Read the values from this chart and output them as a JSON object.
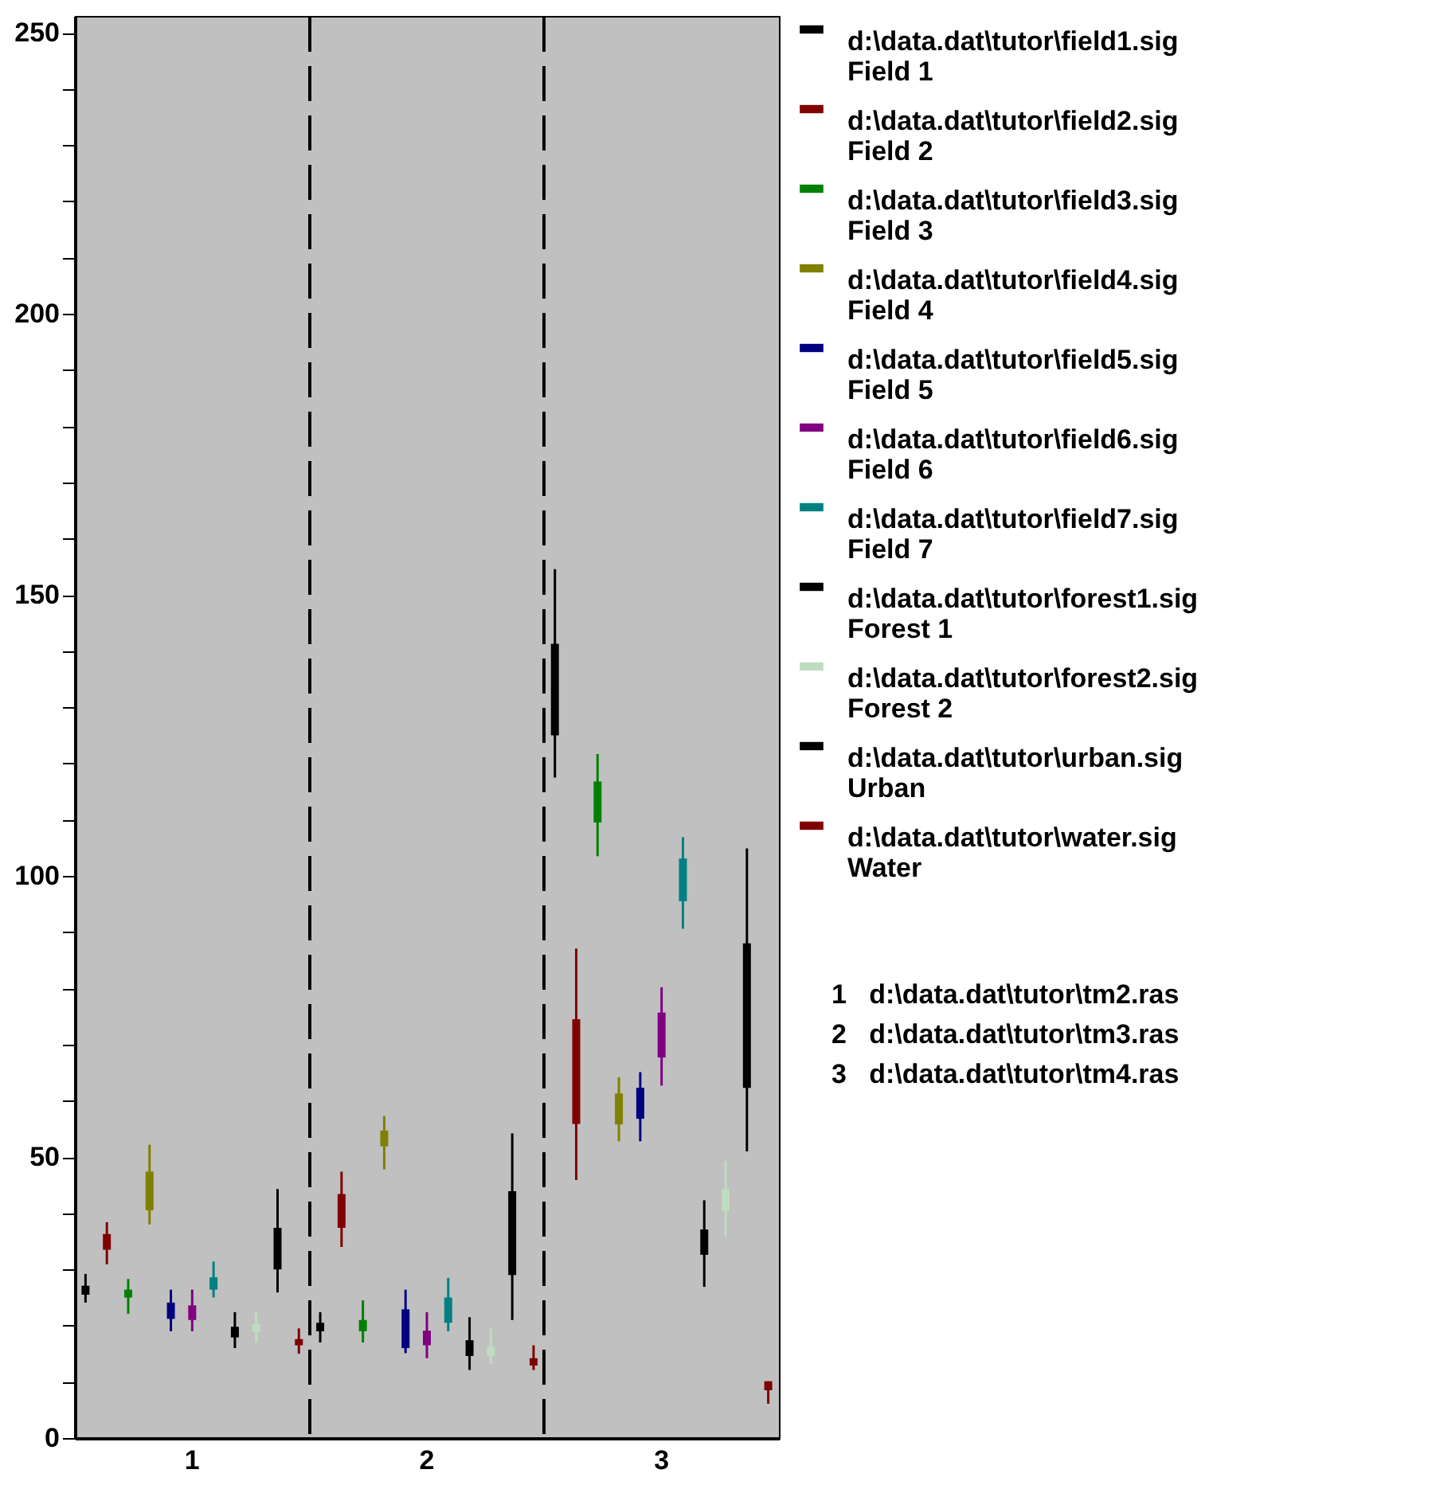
{
  "chart_data": {
    "type": "bar",
    "categories": [
      "1",
      "2",
      "3"
    ],
    "ylim": [
      0,
      253
    ],
    "yticks": [
      0,
      {
        "value": 10,
        "label": null
      },
      {
        "value": 20,
        "label": null
      },
      {
        "value": 30,
        "label": null
      },
      {
        "value": 40,
        "label": null
      },
      50,
      {
        "value": 60,
        "label": null
      },
      {
        "value": 70,
        "label": null
      },
      {
        "value": 80,
        "label": null
      },
      {
        "value": 90,
        "label": null
      },
      100,
      {
        "value": 110,
        "label": null
      },
      {
        "value": 120,
        "label": null
      },
      {
        "value": 130,
        "label": null
      },
      {
        "value": 140,
        "label": null
      },
      150,
      {
        "value": 160,
        "label": null
      },
      {
        "value": 170,
        "label": null
      },
      {
        "value": 180,
        "label": null
      },
      {
        "value": 190,
        "label": null
      },
      200,
      {
        "value": 210,
        "label": null
      },
      {
        "value": 220,
        "label": null
      },
      {
        "value": 230,
        "label": null
      },
      {
        "value": 240,
        "label": null
      },
      250
    ],
    "grid": "x",
    "legend": "right",
    "series": [
      {
        "name": "d:\\data.dat\\tutor\\field1.sig\nField 1",
        "color": "#000000",
        "base": [
          25.5,
          19.0,
          125.0
        ],
        "values": [
          1.6,
          1.5,
          16.3
        ],
        "errors": [
          [
            24.1,
            29.2
          ],
          [
            17.0,
            22.4
          ],
          [
            117.5,
            154.6
          ]
        ]
      },
      {
        "name": "d:\\data.dat\\tutor\\field2.sig\nField 2",
        "color": "#800000",
        "base": [
          33.5,
          37.4,
          55.9
        ],
        "values": [
          2.8,
          6.0,
          18.6
        ],
        "errors": [
          [
            30.9,
            38.4
          ],
          [
            34.0,
            47.4
          ],
          [
            45.9,
            87.1
          ]
        ]
      },
      {
        "name": "d:\\data.dat\\tutor\\field3.sig\nField 3",
        "color": "#008000",
        "base": [
          25.0,
          19.0,
          109.5
        ],
        "values": [
          1.4,
          2.0,
          7.3
        ],
        "errors": [
          [
            22.1,
            28.3
          ],
          [
            17.0,
            24.5
          ],
          [
            103.5,
            121.7
          ]
        ]
      },
      {
        "name": "d:\\data.dat\\tutor\\field4.sig\nField 4",
        "color": "#808000",
        "base": [
          40.5,
          51.9,
          55.8
        ],
        "values": [
          6.9,
          2.8,
          5.5
        ],
        "errors": [
          [
            38.0,
            52.2
          ],
          [
            47.8,
            57.3
          ],
          [
            52.8,
            64.2
          ]
        ]
      },
      {
        "name": "d:\\data.dat\\tutor\\field5.sig\nField 5",
        "color": "#000080",
        "base": [
          21.2,
          16.0,
          56.8
        ],
        "values": [
          2.9,
          6.9,
          5.5
        ],
        "errors": [
          [
            19.0,
            26.4
          ],
          [
            15.1,
            26.4
          ],
          [
            52.8,
            65.1
          ]
        ]
      },
      {
        "name": "d:\\data.dat\\tutor\\field6.sig\nField 6",
        "color": "#800080",
        "base": [
          21.0,
          16.5,
          67.7
        ],
        "values": [
          2.6,
          2.6,
          8.0
        ],
        "errors": [
          [
            19.0,
            26.4
          ],
          [
            14.2,
            22.4
          ],
          [
            62.7,
            80.2
          ]
        ]
      },
      {
        "name": "d:\\data.dat\\tutor\\field7.sig\nField 7",
        "color": "#008080",
        "base": [
          26.4,
          20.5,
          95.5
        ],
        "values": [
          2.2,
          4.5,
          7.6
        ],
        "errors": [
          [
            25.0,
            31.4
          ],
          [
            19.0,
            28.5
          ],
          [
            90.6,
            106.9
          ]
        ]
      },
      {
        "name": "d:\\data.dat\\tutor\\forest1.sig\nForest 1",
        "color": "#000000",
        "base": [
          17.9,
          14.6,
          32.6
        ],
        "values": [
          1.9,
          2.8,
          4.5
        ],
        "errors": [
          [
            16.0,
            22.4
          ],
          [
            12.1,
            21.5
          ],
          [
            26.9,
            42.3
          ]
        ]
      },
      {
        "name": "d:\\data.dat\\tutor\\forest2.sig\nForest 2",
        "color": "#c0dcc0",
        "base": [
          18.9,
          14.6,
          40.4
        ],
        "values": [
          1.4,
          1.6,
          3.9
        ],
        "errors": [
          [
            17.0,
            22.4
          ],
          [
            13.2,
            19.5
          ],
          [
            35.8,
            49.3
          ]
        ]
      },
      {
        "name": "d:\\data.dat\\tutor\\urban.sig\nUrban",
        "color": "#000000",
        "base": [
          30.0,
          29.0,
          62.3
        ],
        "values": [
          7.4,
          14.9,
          25.7
        ],
        "errors": [
          [
            25.9,
            44.3
          ],
          [
            21.0,
            54.2
          ],
          [
            51.0,
            104.9
          ]
        ]
      },
      {
        "name": "d:\\data.dat\\tutor\\water.sig\nWater",
        "color": "#800000",
        "base": [
          16.5,
          12.9,
          8.5
        ],
        "values": [
          1.1,
          1.3,
          1.6
        ],
        "errors": [
          [
            15.0,
            19.5
          ],
          [
            12.1,
            16.5
          ],
          [
            6.1,
            10.1
          ]
        ]
      }
    ],
    "annotations": [
      "1   d:\\data.dat\\tutor\\tm2.ras",
      "2   d:\\data.dat\\tutor\\tm3.ras",
      "3   d:\\data.dat\\tutor\\tm4.ras"
    ]
  }
}
